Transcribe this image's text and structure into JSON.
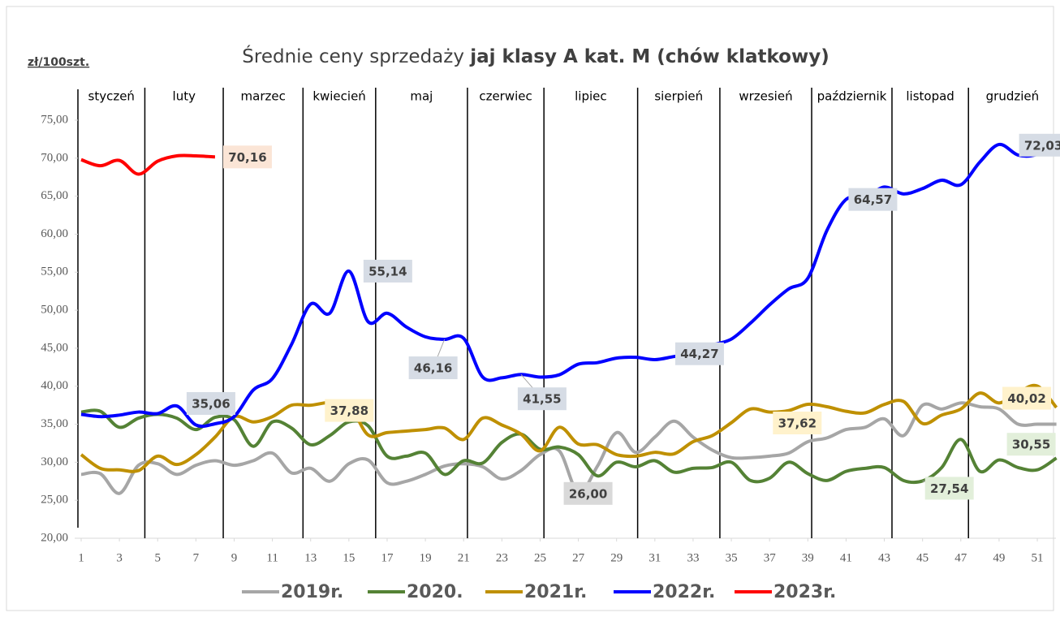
{
  "chart_data": {
    "type": "line",
    "title": [
      "Średnie ceny sprzedaży",
      "jaj klasy A kat.  M (chów klatkowy)"
    ],
    "y_label": "zł/100szt.",
    "months": [
      "styczeń",
      "luty",
      "marzec",
      "kwiecień",
      "maj",
      "czerwiec",
      "lipiec",
      "sierpień",
      "wrzesień",
      "październik",
      "listopad",
      "grudzień"
    ],
    "month_boundaries": [
      4.33,
      8.43,
      12.6,
      16.4,
      21.2,
      25.2,
      30.1,
      34.4,
      39.2,
      43.4,
      47.4
    ],
    "x": [
      1,
      2,
      3,
      4,
      5,
      6,
      7,
      8,
      9,
      10,
      11,
      12,
      13,
      14,
      15,
      16,
      17,
      18,
      19,
      20,
      21,
      22,
      23,
      24,
      25,
      26,
      27,
      28,
      29,
      30,
      31,
      32,
      33,
      34,
      35,
      36,
      37,
      38,
      39,
      40,
      41,
      42,
      43,
      44,
      45,
      46,
      47,
      48,
      49,
      50,
      51,
      52
    ],
    "xlim": [
      1,
      52
    ],
    "xticks": [
      1,
      3,
      5,
      7,
      9,
      11,
      13,
      15,
      17,
      19,
      21,
      23,
      25,
      27,
      29,
      31,
      33,
      35,
      37,
      39,
      41,
      43,
      45,
      47,
      49,
      51
    ],
    "ylim": [
      20,
      75
    ],
    "yticks": [
      {
        "value": 20,
        "label": "20,00"
      },
      {
        "value": 25,
        "label": "25,00"
      },
      {
        "value": 30,
        "label": "30,00"
      },
      {
        "value": 35,
        "label": "35,00"
      },
      {
        "value": 40,
        "label": "40,00"
      },
      {
        "value": 45,
        "label": "45,00"
      },
      {
        "value": 50,
        "label": "50,00"
      },
      {
        "value": 55,
        "label": "55,00"
      },
      {
        "value": 60,
        "label": "60,00"
      },
      {
        "value": 65,
        "label": "65,00"
      },
      {
        "value": 70,
        "label": "70,00"
      },
      {
        "value": 75,
        "label": "75,00"
      }
    ],
    "grid": false,
    "series": [
      {
        "name": "2019r.",
        "color": "#a6a6a6",
        "label_bg": "#d9d9d9",
        "values": [
          28.4,
          28.5,
          25.9,
          29.6,
          29.8,
          28.4,
          29.6,
          30.2,
          29.6,
          30.2,
          31.2,
          28.6,
          29.2,
          27.5,
          29.8,
          30.3,
          27.3,
          27.5,
          28.4,
          29.5,
          29.8,
          29.4,
          27.8,
          28.9,
          31.0,
          31.5,
          26.0,
          29.5,
          33.9,
          31.3,
          33.3,
          35.4,
          33.3,
          31.6,
          30.6,
          30.6,
          30.8,
          31.2,
          32.7,
          33.2,
          34.3,
          34.6,
          35.7,
          33.5,
          37.5,
          37.0,
          37.8,
          37.3,
          37.0,
          35.0,
          35.0,
          35.0
        ],
        "labels": [
          {
            "index": 26,
            "label": "26,00"
          }
        ]
      },
      {
        "name": "2020.",
        "color": "#548235",
        "label_bg": "#e2efda",
        "values": [
          36.6,
          36.7,
          34.6,
          35.8,
          36.3,
          35.8,
          34.3,
          35.9,
          35.6,
          32.1,
          35.3,
          34.5,
          32.3,
          33.5,
          35.3,
          34.8,
          30.8,
          30.8,
          31.2,
          28.4,
          30.2,
          29.9,
          32.6,
          33.7,
          31.7,
          32.0,
          31.0,
          28.2,
          30.0,
          29.4,
          30.2,
          28.7,
          29.2,
          29.3,
          30.0,
          27.6,
          27.9,
          30.0,
          28.5,
          27.6,
          28.8,
          29.2,
          29.3,
          27.6,
          27.54,
          29.3,
          33.0,
          28.8,
          30.3,
          29.3,
          29.0,
          30.55
        ],
        "labels": [
          {
            "index": 44,
            "label": "27,54"
          },
          {
            "index": 51,
            "label": "30,55"
          }
        ]
      },
      {
        "name": "2021r.",
        "color": "#bf9000",
        "label_bg": "#fff2cc",
        "values": [
          31.0,
          29.2,
          29.0,
          28.9,
          30.8,
          29.7,
          31.0,
          33.3,
          36.0,
          35.3,
          36.0,
          37.5,
          37.5,
          37.88,
          37.6,
          33.6,
          33.9,
          34.1,
          34.3,
          34.5,
          33.0,
          35.8,
          34.9,
          33.7,
          31.5,
          34.6,
          32.4,
          32.3,
          31.0,
          30.8,
          31.3,
          31.1,
          32.7,
          33.5,
          35.2,
          37.0,
          36.6,
          36.8,
          37.62,
          37.3,
          36.7,
          36.5,
          37.6,
          38.0,
          35.1,
          36.2,
          37.0,
          39.1,
          37.8,
          39.2,
          40.02,
          37.2
        ],
        "labels": [
          {
            "index": 13,
            "label": "37,88"
          },
          {
            "index": 38,
            "label": "37,62"
          },
          {
            "index": 50,
            "label": "40,02"
          }
        ]
      },
      {
        "name": "2022r.",
        "color": "#0000ff",
        "label_bg": "#d6dce5",
        "values": [
          36.3,
          36.0,
          36.2,
          36.6,
          36.4,
          37.4,
          34.9,
          35.06,
          36.0,
          39.5,
          41.0,
          45.5,
          50.8,
          49.6,
          55.14,
          48.5,
          49.6,
          47.8,
          46.5,
          46.16,
          46.3,
          41.2,
          41.1,
          41.55,
          41.2,
          41.5,
          42.9,
          43.1,
          43.7,
          43.8,
          43.5,
          43.9,
          44.27,
          45.4,
          46.2,
          48.3,
          50.7,
          52.8,
          54.2,
          60.5,
          64.57,
          64.8,
          66.2,
          65.3,
          66.0,
          67.1,
          66.5,
          69.5,
          71.8,
          70.4,
          70.5,
          72.03
        ],
        "labels": [
          {
            "index": 7,
            "label": "35,06"
          },
          {
            "index": 14,
            "label": "55,14"
          },
          {
            "index": 19,
            "label": "46,16"
          },
          {
            "index": 23,
            "label": "41,55"
          },
          {
            "index": 32,
            "label": "44,27"
          },
          {
            "index": 40,
            "label": "64,57"
          },
          {
            "index": 51,
            "label": "72,03"
          }
        ]
      },
      {
        "name": "2023r.",
        "color": "#ff0000",
        "label_bg": "#fbe5d6",
        "values": [
          69.8,
          69.0,
          69.7,
          67.9,
          69.6,
          70.3,
          70.3,
          70.16,
          null,
          null,
          null,
          null,
          null,
          null,
          null,
          null,
          null,
          null,
          null,
          null,
          null,
          null,
          null,
          null,
          null,
          null,
          null,
          null,
          null,
          null,
          null,
          null,
          null,
          null,
          null,
          null,
          null,
          null,
          null,
          null,
          null,
          null,
          null,
          null,
          null,
          null,
          null,
          null,
          null,
          null,
          null,
          null
        ],
        "labels": [
          {
            "index": 7,
            "label": "70,16"
          }
        ]
      }
    ]
  }
}
